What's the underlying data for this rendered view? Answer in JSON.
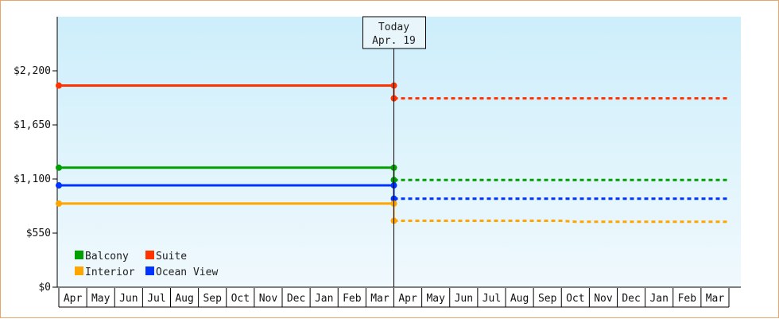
{
  "chart_data": {
    "type": "line",
    "ylim": [
      0,
      2750
    ],
    "yticks": [
      0,
      550,
      1100,
      1650,
      2200
    ],
    "ytick_labels": [
      "$0",
      "$550",
      "$1,100",
      "$1,650",
      "$2,200"
    ],
    "months": [
      "Apr",
      "May",
      "Jun",
      "Jul",
      "Aug",
      "Sep",
      "Oct",
      "Nov",
      "Dec",
      "Jan",
      "Feb",
      "Mar",
      "Apr",
      "May",
      "Jun",
      "Jul",
      "Aug",
      "Sep",
      "Oct",
      "Nov",
      "Dec",
      "Jan",
      "Feb",
      "Mar"
    ],
    "today": {
      "title": "Today",
      "date": "Apr. 19",
      "month_index": 12
    },
    "series": [
      {
        "name": "Suite",
        "color": "#ff3300",
        "historical": [
          {
            "m": 0,
            "v": 2050
          },
          {
            "m": 12,
            "v": 2050
          }
        ],
        "forecast": [
          {
            "m": 12,
            "v": 1920
          },
          {
            "m": 24,
            "v": 1920
          }
        ]
      },
      {
        "name": "Balcony",
        "color": "#00a000",
        "historical": [
          {
            "m": 0,
            "v": 1215
          },
          {
            "m": 12,
            "v": 1215
          }
        ],
        "forecast": [
          {
            "m": 12,
            "v": 1090
          },
          {
            "m": 24,
            "v": 1090
          }
        ]
      },
      {
        "name": "Ocean View",
        "color": "#0033ff",
        "historical": [
          {
            "m": 0,
            "v": 1035
          },
          {
            "m": 12,
            "v": 1035
          }
        ],
        "forecast": [
          {
            "m": 12,
            "v": 900
          },
          {
            "m": 24,
            "v": 900
          }
        ]
      },
      {
        "name": "Interior",
        "color": "#ffa500",
        "historical": [
          {
            "m": 0,
            "v": 850
          },
          {
            "m": 12,
            "v": 850
          }
        ],
        "forecast": [
          {
            "m": 12,
            "v": 675
          },
          {
            "m": 18,
            "v": 675
          },
          {
            "m": 18.5,
            "v": 665
          },
          {
            "m": 24,
            "v": 665
          }
        ]
      }
    ],
    "legend": [
      {
        "label": "Balcony",
        "color": "#00a000"
      },
      {
        "label": "Suite",
        "color": "#ff3300"
      },
      {
        "label": "Interior",
        "color": "#ffa500"
      },
      {
        "label": "Ocean View",
        "color": "#0033ff"
      }
    ],
    "legend_position": "bottom-left",
    "grid": false
  }
}
